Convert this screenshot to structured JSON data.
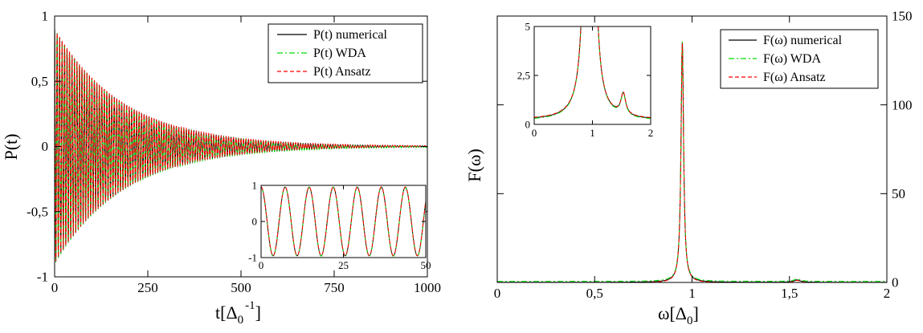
{
  "chart_data": [
    {
      "type": "line",
      "xlabel": "t[Δ",
      "xlabel_sub": "0",
      "xlabel_sup": "-1",
      "xlabel_close": "]",
      "ylabel": "P(t)",
      "xlim": [
        0,
        1000
      ],
      "ylim": [
        -1,
        1
      ],
      "xticks": [
        0,
        250,
        500,
        750,
        1000
      ],
      "xtick_labels": [
        "0",
        "250",
        "500",
        "750",
        "1000"
      ],
      "yticks": [
        -1,
        -0.5,
        0,
        0.5,
        1
      ],
      "ytick_labels": [
        "-1",
        "-0,5",
        "0",
        "0,5",
        "1"
      ],
      "grid": false,
      "legend_position": "top-right",
      "signal": {
        "amplitude": 0.9,
        "decay_time": 185,
        "frequency": 0.15
      },
      "series": [
        {
          "name": "P(t) numerical",
          "color": "#000000",
          "dash": "solid"
        },
        {
          "name": "P(t) WDA",
          "color": "#00dd00",
          "dash": "dash-dot"
        },
        {
          "name": "P(t) Ansatz",
          "color": "#ff0000",
          "dash": "dashed"
        }
      ],
      "inset": {
        "type": "line",
        "xlim": [
          0,
          50
        ],
        "ylim": [
          -1,
          1
        ],
        "xticks": [
          0,
          25,
          50
        ],
        "xtick_labels": [
          "0",
          "25",
          "50"
        ],
        "yticks": [
          -1,
          0,
          1
        ],
        "ytick_labels": [
          "-1",
          "0",
          "1"
        ]
      }
    },
    {
      "type": "line",
      "xlabel": "ω[Δ",
      "xlabel_sub": "0",
      "xlabel_close": "]",
      "ylabel": "F(ω)",
      "xlim": [
        0,
        2
      ],
      "ylim": [
        0,
        150
      ],
      "xticks": [
        0,
        0.5,
        1,
        1.5,
        2
      ],
      "xtick_labels": [
        "0",
        "0,5",
        "1",
        "1,5",
        "2"
      ],
      "yticks_right": [
        0,
        50,
        100,
        150
      ],
      "ytick_labels_right": [
        "0",
        "50",
        "100",
        "150"
      ],
      "grid": false,
      "legend_position": "top-right",
      "peaks": [
        {
          "center": 0.95,
          "height": 135,
          "width": 0.008
        },
        {
          "center": 1.54,
          "height": 1.3,
          "width": 0.02
        }
      ],
      "series": [
        {
          "name": "F(ω) numerical",
          "color": "#000000",
          "dash": "solid"
        },
        {
          "name": "F(ω) WDA",
          "color": "#00dd00",
          "dash": "dash-dot"
        },
        {
          "name": "F(ω) Ansatz",
          "color": "#ff0000",
          "dash": "dashed"
        }
      ],
      "inset": {
        "type": "line",
        "xlim": [
          0,
          2
        ],
        "ylim": [
          0,
          5
        ],
        "xticks": [
          0,
          1,
          2
        ],
        "xtick_labels": [
          "0",
          "1",
          "2"
        ],
        "yticks": [
          0,
          2.5,
          5
        ],
        "ytick_labels": [
          "0",
          "2,5",
          "5"
        ]
      }
    }
  ]
}
